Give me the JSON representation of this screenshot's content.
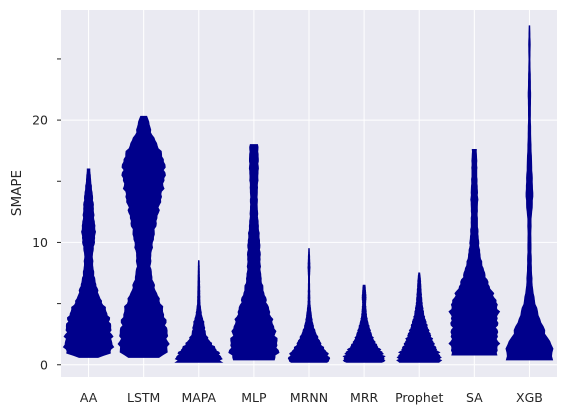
{
  "chart_data": {
    "type": "violin",
    "title": "",
    "xlabel": "",
    "ylabel": "SMAPE",
    "ylim": [
      -1,
      29
    ],
    "yticks": [
      0,
      10,
      20
    ],
    "grid": true,
    "background": "#eaeaf2",
    "grid_color": "#ffffff",
    "fill_color": "#00008b",
    "categories": [
      "AA",
      "LSTM",
      "MAPA",
      "MLP",
      "MRNN",
      "MRR",
      "Prophet",
      "SA",
      "XGB"
    ],
    "violins": [
      {
        "name": "AA",
        "profile": [
          [
            0.6,
            0.4
          ],
          [
            1,
            0.95
          ],
          [
            1.5,
            1.0
          ],
          [
            2.5,
            0.95
          ],
          [
            3.5,
            0.9
          ],
          [
            4.5,
            0.72
          ],
          [
            5.5,
            0.45
          ],
          [
            7,
            0.25
          ],
          [
            8,
            0.18
          ],
          [
            9,
            0.16
          ],
          [
            10,
            0.24
          ],
          [
            11,
            0.28
          ],
          [
            12,
            0.22
          ],
          [
            13,
            0.2
          ],
          [
            14,
            0.15
          ],
          [
            15,
            0.09
          ],
          [
            16,
            0.05
          ]
        ]
      },
      {
        "name": "LSTM",
        "profile": [
          [
            0.6,
            0.6
          ],
          [
            1,
            1.0
          ],
          [
            2,
            1.0
          ],
          [
            3,
            0.96
          ],
          [
            4,
            0.86
          ],
          [
            5,
            0.72
          ],
          [
            6,
            0.5
          ],
          [
            7,
            0.36
          ],
          [
            8,
            0.28
          ],
          [
            9,
            0.3
          ],
          [
            10,
            0.38
          ],
          [
            11,
            0.46
          ],
          [
            12,
            0.56
          ],
          [
            13,
            0.66
          ],
          [
            14,
            0.76
          ],
          [
            15,
            0.85
          ],
          [
            16,
            0.9
          ],
          [
            17,
            0.8
          ],
          [
            18,
            0.56
          ],
          [
            19,
            0.3
          ],
          [
            20,
            0.2
          ],
          [
            20.3,
            0.12
          ]
        ]
      },
      {
        "name": "MAPA",
        "profile": [
          [
            0.2,
            0.9
          ],
          [
            0.5,
            0.95
          ],
          [
            1,
            0.82
          ],
          [
            1.5,
            0.62
          ],
          [
            2,
            0.42
          ],
          [
            2.5,
            0.28
          ],
          [
            3,
            0.24
          ],
          [
            3.5,
            0.2
          ],
          [
            4,
            0.12
          ],
          [
            5,
            0.05
          ],
          [
            6,
            0.04
          ],
          [
            7,
            0.03
          ],
          [
            8,
            0.02
          ],
          [
            8.5,
            0.01
          ]
        ]
      },
      {
        "name": "MLP",
        "profile": [
          [
            0.4,
            0.85
          ],
          [
            1,
            1.0
          ],
          [
            2,
            0.95
          ],
          [
            3,
            0.85
          ],
          [
            4,
            0.7
          ],
          [
            5,
            0.55
          ],
          [
            6,
            0.4
          ],
          [
            7,
            0.3
          ],
          [
            8,
            0.26
          ],
          [
            9,
            0.26
          ],
          [
            10,
            0.24
          ],
          [
            11,
            0.2
          ],
          [
            12,
            0.16
          ],
          [
            13,
            0.14
          ],
          [
            14,
            0.14
          ],
          [
            15,
            0.16
          ],
          [
            16,
            0.18
          ],
          [
            17,
            0.18
          ],
          [
            18,
            0.16
          ]
        ]
      },
      {
        "name": "MRNN",
        "profile": [
          [
            0.2,
            0.8
          ],
          [
            0.5,
            0.85
          ],
          [
            1,
            0.75
          ],
          [
            1.5,
            0.55
          ],
          [
            2,
            0.42
          ],
          [
            2.5,
            0.3
          ],
          [
            3,
            0.2
          ],
          [
            3.5,
            0.14
          ],
          [
            4,
            0.1
          ],
          [
            5,
            0.04
          ],
          [
            6,
            0.03
          ],
          [
            7,
            0.02
          ],
          [
            8,
            0.04
          ],
          [
            8.5,
            0.03
          ],
          [
            9.5,
            0.01
          ]
        ]
      },
      {
        "name": "MRR",
        "profile": [
          [
            0.2,
            0.8
          ],
          [
            0.5,
            0.85
          ],
          [
            1,
            0.75
          ],
          [
            1.5,
            0.55
          ],
          [
            2,
            0.4
          ],
          [
            2.5,
            0.3
          ],
          [
            3,
            0.22
          ],
          [
            3.5,
            0.15
          ],
          [
            4,
            0.1
          ],
          [
            5,
            0.06
          ],
          [
            5.5,
            0.08
          ],
          [
            6,
            0.06
          ],
          [
            6.5,
            0.04
          ]
        ]
      },
      {
        "name": "Prophet",
        "profile": [
          [
            0.2,
            0.85
          ],
          [
            0.5,
            0.9
          ],
          [
            1,
            0.8
          ],
          [
            1.5,
            0.65
          ],
          [
            2,
            0.55
          ],
          [
            2.5,
            0.45
          ],
          [
            3,
            0.35
          ],
          [
            3.5,
            0.28
          ],
          [
            4,
            0.2
          ],
          [
            5,
            0.12
          ],
          [
            6,
            0.08
          ],
          [
            7,
            0.05
          ],
          [
            7.5,
            0.02
          ]
        ]
      },
      {
        "name": "SA",
        "profile": [
          [
            0.8,
            0.9
          ],
          [
            1.5,
            1.0
          ],
          [
            2.5,
            0.95
          ],
          [
            3.5,
            0.95
          ],
          [
            4.5,
            1.0
          ],
          [
            5.5,
            0.85
          ],
          [
            6.5,
            0.6
          ],
          [
            7.5,
            0.42
          ],
          [
            8.5,
            0.28
          ],
          [
            9.5,
            0.2
          ],
          [
            10.5,
            0.16
          ],
          [
            11.5,
            0.13
          ],
          [
            12.5,
            0.12
          ],
          [
            13.5,
            0.14
          ],
          [
            14.5,
            0.12
          ],
          [
            15.5,
            0.1
          ],
          [
            16.5,
            0.1
          ],
          [
            17.6,
            0.08
          ]
        ]
      },
      {
        "name": "XGB",
        "profile": [
          [
            0.4,
            0.9
          ],
          [
            1,
            1.0
          ],
          [
            1.5,
            0.95
          ],
          [
            2,
            0.8
          ],
          [
            3,
            0.58
          ],
          [
            4,
            0.38
          ],
          [
            5,
            0.24
          ],
          [
            6,
            0.14
          ],
          [
            7,
            0.1
          ],
          [
            8,
            0.08
          ],
          [
            9,
            0.07
          ],
          [
            10,
            0.06
          ],
          [
            11,
            0.06
          ],
          [
            12,
            0.07
          ],
          [
            13,
            0.12
          ],
          [
            14,
            0.14
          ],
          [
            15,
            0.12
          ],
          [
            16,
            0.1
          ],
          [
            17,
            0.08
          ],
          [
            18,
            0.06
          ],
          [
            19,
            0.05
          ],
          [
            20,
            0.04
          ],
          [
            21,
            0.04
          ],
          [
            22,
            0.05
          ],
          [
            23,
            0.04
          ],
          [
            24,
            0.03
          ],
          [
            25,
            0.02
          ],
          [
            26,
            0.03
          ],
          [
            27,
            0.02
          ],
          [
            27.7,
            0.01
          ]
        ]
      }
    ]
  }
}
